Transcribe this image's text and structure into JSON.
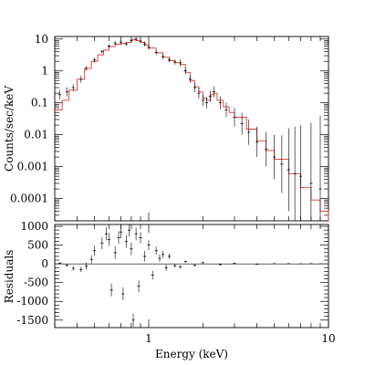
{
  "chart_data": [
    {
      "panel": "spectrum",
      "type": "scatter",
      "xlabel": "",
      "ylabel": "Counts/sec/keV",
      "xscale": "log",
      "yscale": "log",
      "xlim": [
        0.3,
        10
      ],
      "ylim": [
        2e-05,
        12
      ],
      "x_ticks": [
        1,
        10
      ],
      "y_ticks": [
        10,
        1,
        0.1,
        0.01,
        0.001,
        0.0001
      ],
      "y_tick_labels": [
        "10",
        "1",
        "0.1",
        "0.01",
        "0.001",
        "0.0001"
      ],
      "grid": false,
      "legend": "none",
      "series": [
        {
          "role": "data",
          "color": "#000000",
          "x": [
            0.32,
            0.35,
            0.38,
            0.42,
            0.45,
            0.5,
            0.55,
            0.6,
            0.65,
            0.7,
            0.75,
            0.8,
            0.85,
            0.9,
            0.95,
            1.0,
            1.1,
            1.2,
            1.3,
            1.4,
            1.5,
            1.6,
            1.7,
            1.8,
            1.9,
            2.0,
            2.1,
            2.2,
            2.3,
            2.5,
            2.7,
            3.0,
            3.3,
            3.6,
            4.0,
            4.5,
            5.0,
            5.5,
            6.0,
            6.5,
            7.0,
            8.0,
            9.0
          ],
          "y": [
            0.18,
            0.22,
            0.3,
            0.55,
            1.2,
            2.2,
            4.0,
            6.0,
            7.5,
            8.0,
            7.0,
            9.0,
            10.0,
            8.5,
            7.0,
            5.5,
            3.8,
            2.8,
            2.2,
            1.9,
            1.8,
            1.0,
            0.55,
            0.3,
            0.2,
            0.12,
            0.1,
            0.16,
            0.22,
            0.1,
            0.06,
            0.035,
            0.022,
            0.012,
            0.006,
            0.0035,
            0.002,
            0.0012,
            0.0008,
            0.0006,
            0.0005,
            0.0003,
            0.0002
          ],
          "y_err_factor": [
            1.4,
            1.4,
            1.3,
            1.3,
            1.2,
            1.2,
            1.15,
            1.15,
            1.15,
            1.15,
            1.15,
            1.15,
            1.15,
            1.15,
            1.2,
            1.2,
            1.2,
            1.2,
            1.2,
            1.2,
            1.3,
            1.3,
            1.3,
            1.4,
            1.5,
            1.5,
            1.5,
            1.5,
            1.5,
            1.6,
            1.7,
            2.0,
            2.2,
            2.5,
            3.0,
            3.5,
            5.0,
            8.0,
            20.0,
            30.0,
            40.0,
            80.0,
            200.0
          ]
        },
        {
          "role": "model",
          "color": "#e8322d",
          "x": [
            0.3,
            0.33,
            0.36,
            0.4,
            0.44,
            0.48,
            0.52,
            0.56,
            0.6,
            0.65,
            0.7,
            0.75,
            0.8,
            0.85,
            0.9,
            0.95,
            1.0,
            1.1,
            1.2,
            1.3,
            1.4,
            1.5,
            1.6,
            1.7,
            1.8,
            1.9,
            2.0,
            2.1,
            2.2,
            2.3,
            2.4,
            2.6,
            2.8,
            3.0,
            3.5,
            4.0,
            4.5,
            5.0,
            6.0,
            7.0,
            8.0,
            9.0,
            10.0
          ],
          "y": [
            0.06,
            0.12,
            0.25,
            0.55,
            1.2,
            2.0,
            3.2,
            4.5,
            5.8,
            6.8,
            7.2,
            7.8,
            9.5,
            9.0,
            7.8,
            6.5,
            5.2,
            3.7,
            2.7,
            2.1,
            1.8,
            1.6,
            0.9,
            0.5,
            0.32,
            0.22,
            0.14,
            0.12,
            0.18,
            0.2,
            0.12,
            0.075,
            0.05,
            0.035,
            0.015,
            0.0065,
            0.0032,
            0.0017,
            0.0006,
            0.00022,
            9e-05,
            4e-05,
            2e-05
          ]
        }
      ]
    },
    {
      "panel": "residuals",
      "type": "scatter",
      "xlabel": "Energy (keV)",
      "ylabel": "Residuals",
      "xscale": "log",
      "yscale": "linear",
      "xlim": [
        0.3,
        10
      ],
      "ylim": [
        -1700,
        1050
      ],
      "x_ticks": [
        1,
        10
      ],
      "x_tick_labels": [
        "1",
        "10"
      ],
      "y_ticks": [
        1000,
        500,
        0,
        -500,
        -1000,
        -1500
      ],
      "y_tick_labels": [
        "1000",
        "500",
        "0",
        "-500",
        "-1000",
        "-1500"
      ],
      "reference_line": 0,
      "grid": false,
      "legend": "none",
      "series": [
        {
          "role": "residuals",
          "color": "#000000",
          "x": [
            0.32,
            0.35,
            0.38,
            0.42,
            0.45,
            0.48,
            0.5,
            0.55,
            0.58,
            0.6,
            0.62,
            0.65,
            0.68,
            0.7,
            0.72,
            0.75,
            0.78,
            0.8,
            0.82,
            0.85,
            0.88,
            0.9,
            0.95,
            1.0,
            1.05,
            1.1,
            1.15,
            1.2,
            1.25,
            1.3,
            1.4,
            1.5,
            1.6,
            1.8,
            2.0,
            2.5,
            3.0,
            4.0,
            5.0,
            6.0,
            7.0,
            8.0,
            9.0
          ],
          "y": [
            20,
            -40,
            -120,
            -150,
            -60,
            120,
            350,
            550,
            800,
            650,
            -700,
            300,
            700,
            850,
            -800,
            600,
            900,
            400,
            -1500,
            800,
            -600,
            700,
            200,
            500,
            -300,
            350,
            150,
            250,
            -100,
            200,
            -50,
            -80,
            60,
            -40,
            30,
            -20,
            15,
            -10,
            5,
            5,
            0,
            5,
            0
          ],
          "y_err": [
            20,
            40,
            60,
            70,
            90,
            110,
            140,
            160,
            170,
            170,
            170,
            170,
            170,
            170,
            170,
            170,
            170,
            170,
            170,
            170,
            160,
            150,
            140,
            130,
            120,
            110,
            100,
            90,
            80,
            70,
            50,
            40,
            30,
            25,
            20,
            15,
            12,
            10,
            8,
            6,
            5,
            4,
            3
          ]
        }
      ]
    }
  ]
}
